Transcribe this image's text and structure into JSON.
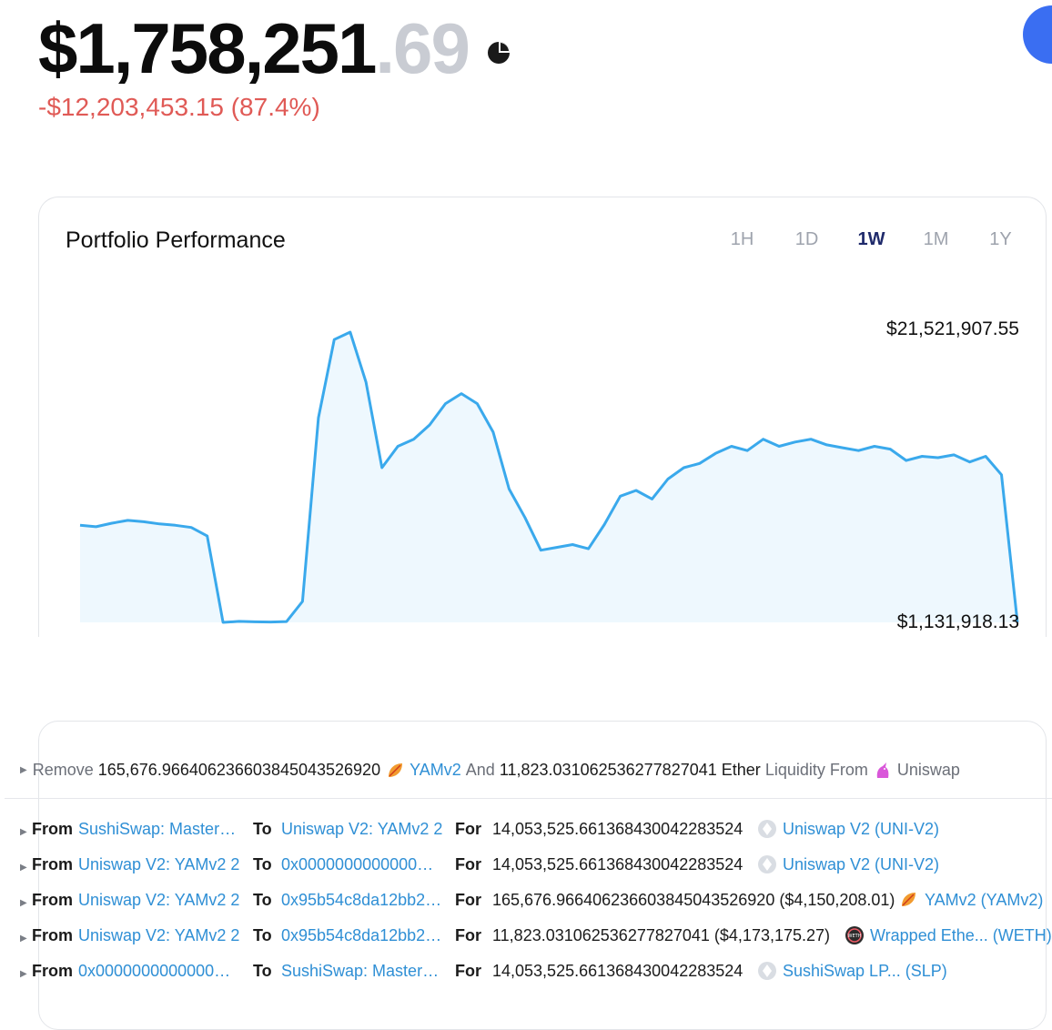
{
  "balance": {
    "main": "$1,758,251",
    "cents": ".69",
    "change": "-$12,203,453.15 (87.4%)"
  },
  "icons": {
    "portfolio": "pie-chart-icon",
    "avatar": "avatar-dot"
  },
  "colors": {
    "line": "#3aa9ec",
    "fill": "#eef8fe",
    "negative": "#e05a56",
    "accent": "#1f2a6b"
  },
  "chart": {
    "title": "Portfolio Performance",
    "ranges": [
      "1H",
      "1D",
      "1W",
      "1M",
      "1Y"
    ],
    "active_range": "1W",
    "max_label": "$21,521,907.55",
    "min_label": "$1,131,918.13"
  },
  "chart_data": {
    "type": "area",
    "title": "Portfolio Performance",
    "y_min": 1131918.13,
    "y_max": 21521907.55,
    "values": [
      7950000,
      7850000,
      8100000,
      8300000,
      8200000,
      8050000,
      7950000,
      7800000,
      7200000,
      1131918,
      1200000,
      1170000,
      1160000,
      1190000,
      2600000,
      15500000,
      21000000,
      21521907,
      18000000,
      12000000,
      13500000,
      14000000,
      15000000,
      16500000,
      17200000,
      16500000,
      14500000,
      10500000,
      8500000,
      6200000,
      6400000,
      6600000,
      6300000,
      8000000,
      10000000,
      10400000,
      9800000,
      11200000,
      12000000,
      12300000,
      13000000,
      13500000,
      13200000,
      14000000,
      13500000,
      13800000,
      14000000,
      13600000,
      13400000,
      13200000,
      13500000,
      13300000,
      12500000,
      12800000,
      12700000,
      12900000,
      12400000,
      12800000,
      11500000,
      1131918
    ]
  },
  "transactions": {
    "summary": {
      "verb": "Remove",
      "amount1": "165,676.966406236603845043526920",
      "token1": "YAMv2",
      "conj": "And",
      "amount2": "11,823.031062536277827041",
      "token2": "Ether",
      "middle": "Liquidity From",
      "platform": "Uniswap"
    },
    "labels": {
      "from": "From",
      "to": "To",
      "for": "For"
    },
    "rows": [
      {
        "from": "SushiSwap: Master…",
        "to": "Uniswap V2: YAMv2 2",
        "amount": "14,053,525.661368430042283524",
        "token": "Uniswap V2 (UNI-V2)",
        "icon": "uniswap-lp-icon"
      },
      {
        "from": "Uniswap V2: YAMv2 2",
        "to": "0x0000000000000…",
        "amount": "14,053,525.661368430042283524",
        "token": "Uniswap V2 (UNI-V2)",
        "icon": "uniswap-lp-icon"
      },
      {
        "from": "Uniswap V2: YAMv2 2",
        "to": "0x95b54c8da12bb2…",
        "amount": "165,676.966406236603845043526920 ($4,150,208.01)",
        "token": "YAMv2 (YAMv2)",
        "icon": "yam-icon"
      },
      {
        "from": "Uniswap V2: YAMv2 2",
        "to": "0x95b54c8da12bb2…",
        "amount": "11,823.031062536277827041 ($4,173,175.27)",
        "token": "Wrapped Ethe... (WETH)",
        "icon": "weth-icon"
      },
      {
        "from": "0x0000000000000…",
        "to": "SushiSwap: Master…",
        "amount": "14,053,525.661368430042283524",
        "token": "SushiSwap LP... (SLP)",
        "icon": "sushiswap-lp-icon"
      }
    ]
  }
}
